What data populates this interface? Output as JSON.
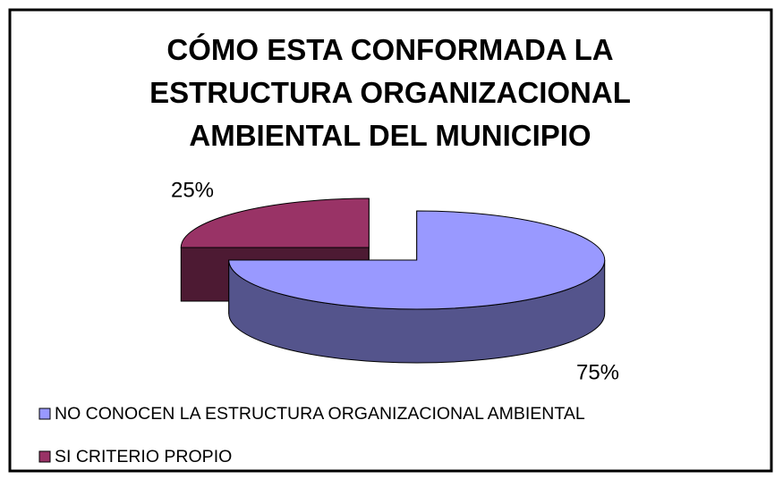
{
  "chart_data": {
    "type": "pie",
    "title": "CÓMO ESTA CONFORMADA LA ESTRUCTURA ORGANIZACIONAL AMBIENTAL DEL MUNICIPIO",
    "categories": [
      "NO CONOCEN LA ESTRUCTURA ORGANIZACIONAL AMBIENTAL",
      "SI CRITERIO PROPIO"
    ],
    "values": [
      75,
      25
    ],
    "value_labels": [
      "75%",
      "25%"
    ],
    "colors": [
      "#9999ff",
      "#993366"
    ],
    "legend": "bottom"
  }
}
